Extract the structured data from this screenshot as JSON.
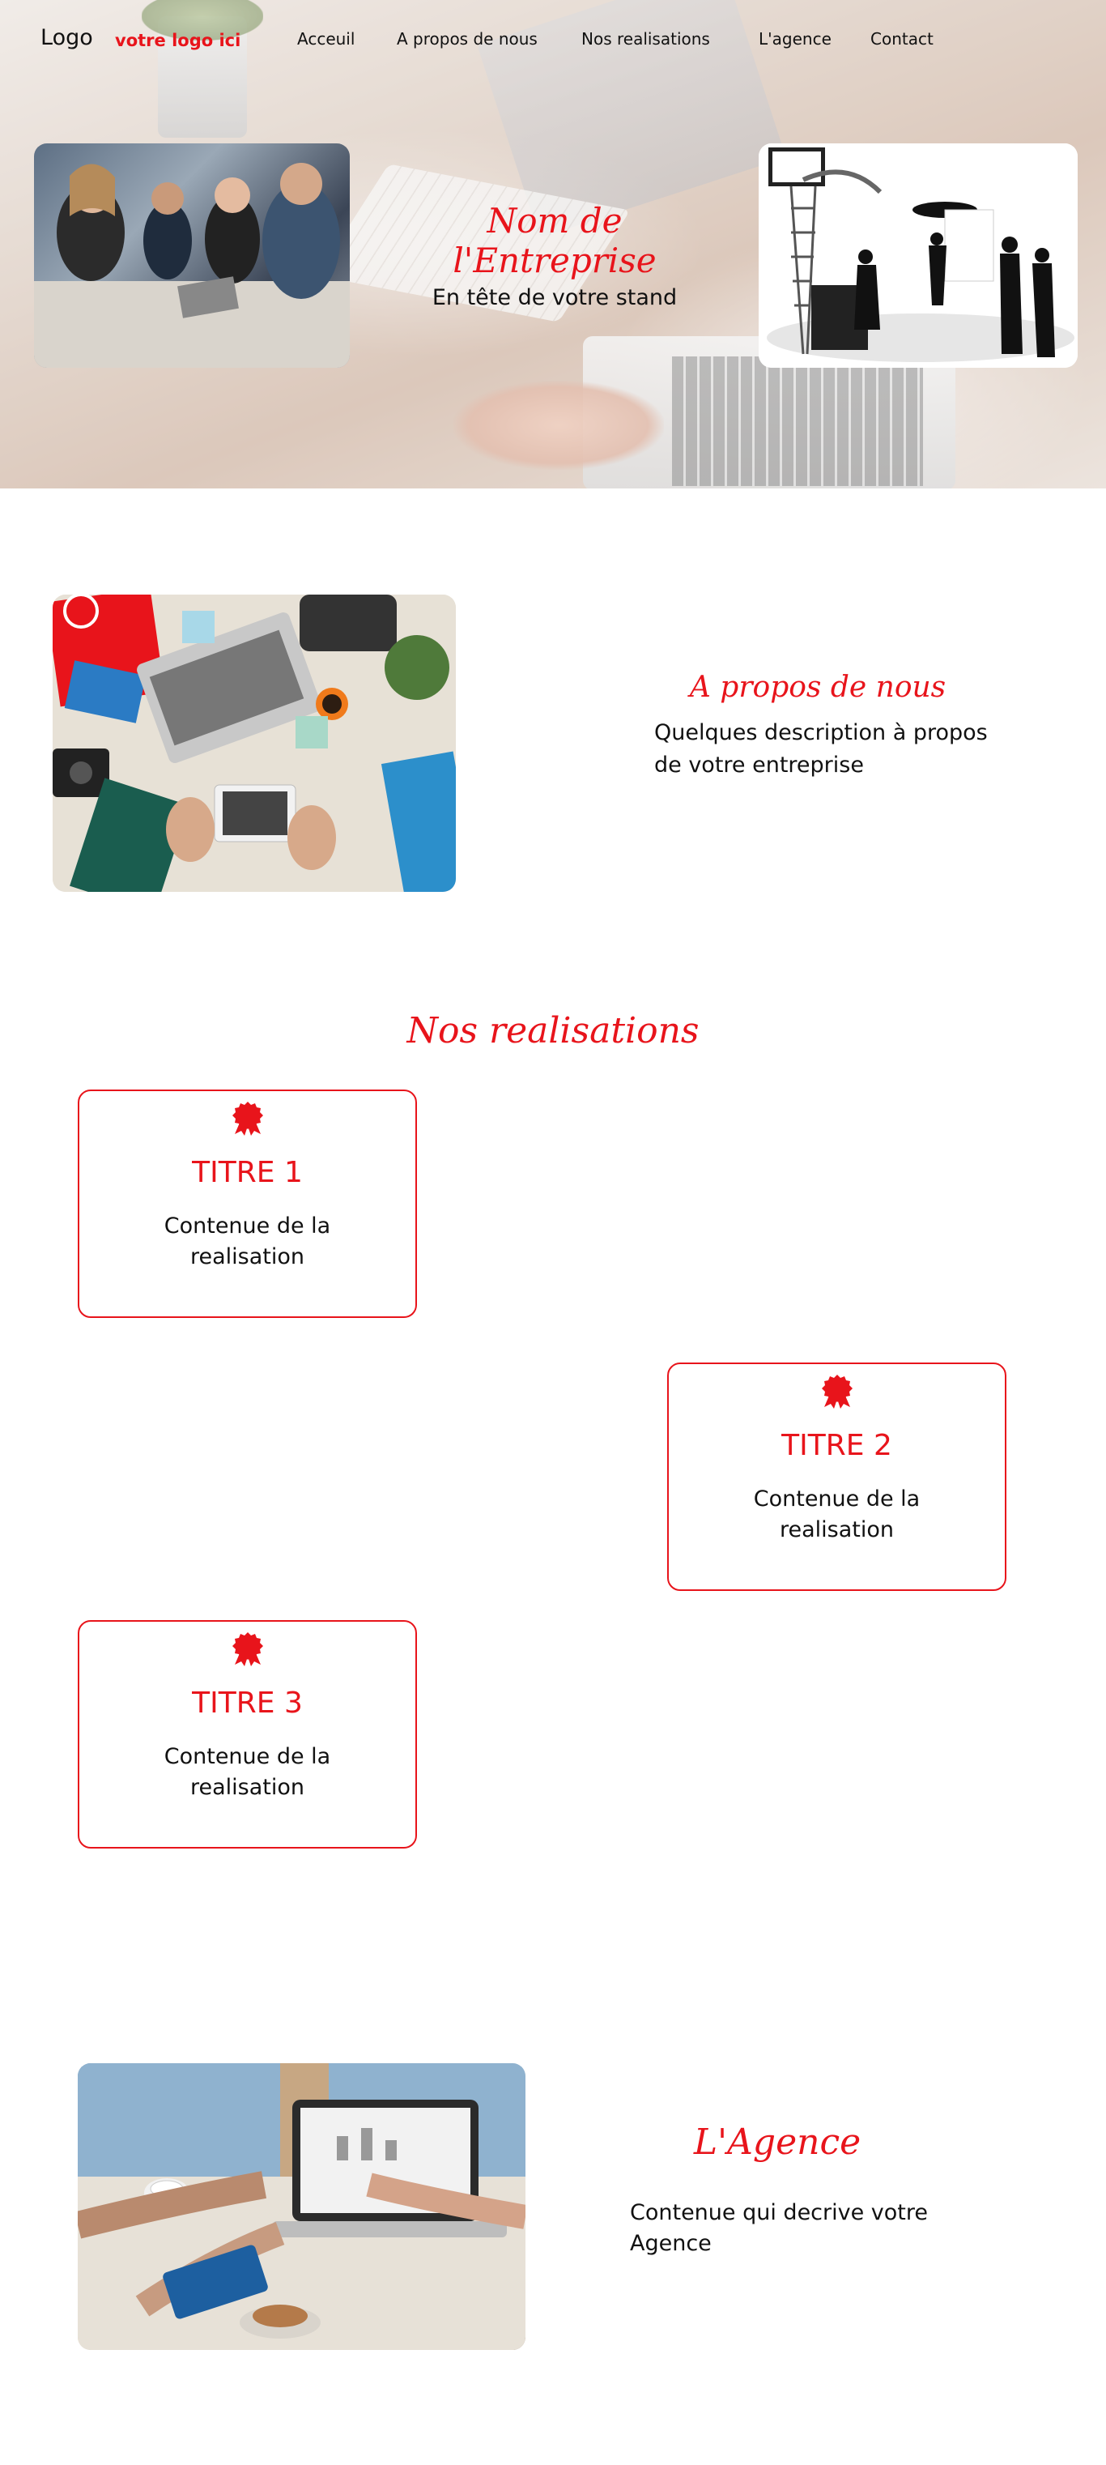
{
  "nav": {
    "logo": "Logo",
    "logo_sub": "votre logo ici",
    "links": [
      "Acceuil",
      "A propos de nous",
      "Nos realisations",
      "L'agence",
      "Contact"
    ]
  },
  "hero": {
    "title": "Nom de l'Entreprise",
    "subtitle": "En tête de votre stand"
  },
  "about": {
    "title": "A propos de nous",
    "text": "Quelques description à propos de votre entreprise"
  },
  "realisations": {
    "title": "Nos realisations",
    "items": [
      {
        "title": "TITRE 1",
        "text": "Contenue de la realisation"
      },
      {
        "title": "TITRE 2",
        "text": "Contenue de la realisation"
      },
      {
        "title": "TITRE 3",
        "text": "Contenue de la realisation"
      }
    ]
  },
  "agence": {
    "title": "L'Agence",
    "text": "Contenue qui decrive votre Agence"
  },
  "colors": {
    "accent": "#e8141b",
    "text": "#111111",
    "background": "#ffffff"
  },
  "icons": [
    "award-rosette-icon"
  ]
}
